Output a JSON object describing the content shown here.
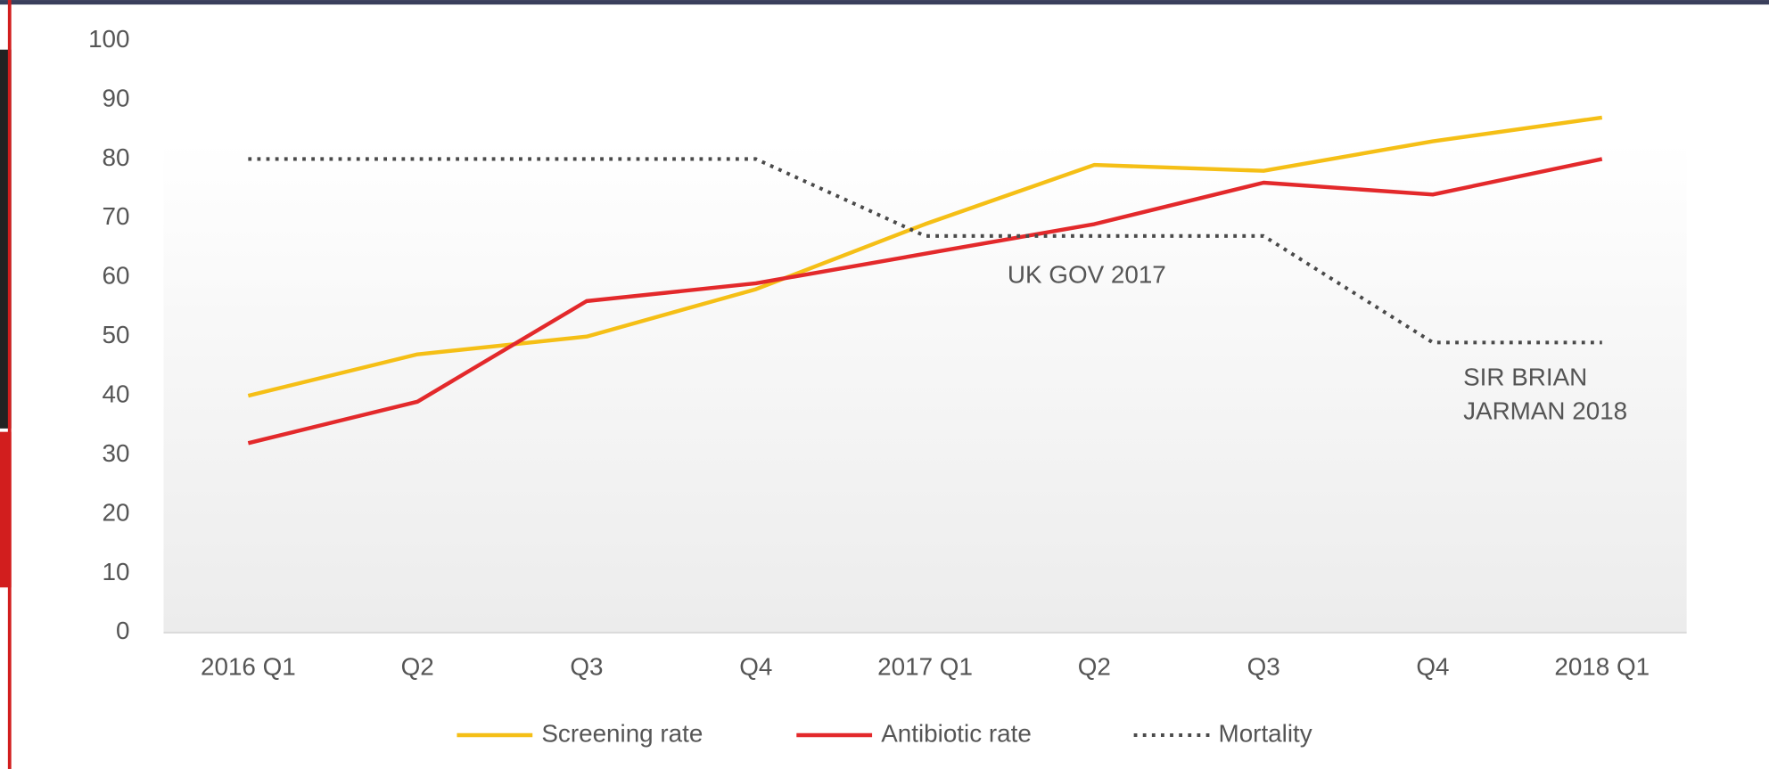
{
  "chart_data": {
    "type": "line",
    "categories": [
      "2016 Q1",
      "Q2",
      "Q3",
      "Q4",
      "2017 Q1",
      "Q2",
      "Q3",
      "Q4",
      "2018 Q1"
    ],
    "series": [
      {
        "name": "Screening rate",
        "color": "#f5bf16",
        "style": "solid",
        "values": [
          40,
          47,
          50,
          58,
          69,
          79,
          78,
          83,
          87
        ]
      },
      {
        "name": "Antibiotic rate",
        "color": "#e3292b",
        "style": "solid",
        "values": [
          32,
          39,
          56,
          59,
          64,
          69,
          76,
          74,
          80
        ]
      },
      {
        "name": "Mortality",
        "color": "#4a4a4a",
        "style": "dotted",
        "values": [
          80,
          80,
          80,
          80,
          67,
          67,
          67,
          49,
          49
        ]
      }
    ],
    "ylim": [
      0,
      100
    ],
    "yticks": [
      0,
      10,
      20,
      30,
      40,
      50,
      60,
      70,
      80,
      90,
      100
    ],
    "grid": false,
    "legend": "bottom",
    "annotations": [
      {
        "lines": [
          "UK GOV 2017"
        ]
      },
      {
        "lines": [
          "SIR BRIAN",
          "JARMAN 2018"
        ]
      }
    ]
  }
}
